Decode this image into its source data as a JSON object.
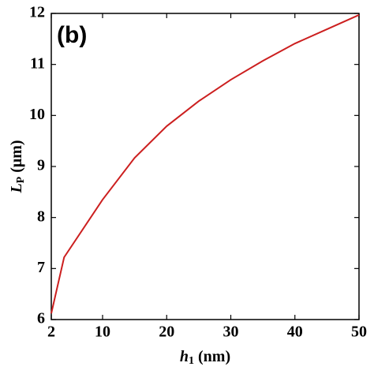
{
  "chart_data": {
    "type": "line",
    "annotation": "(b)",
    "xlabel": [
      "h",
      "1",
      " (nm)"
    ],
    "ylabel": [
      "L",
      "P",
      " (μm)"
    ],
    "x": [
      2,
      4,
      10,
      15,
      20,
      25,
      30,
      35,
      40,
      45,
      50
    ],
    "series": [
      {
        "color": "#cc1f1f",
        "values": [
          6.12,
          7.22,
          8.35,
          9.17,
          9.79,
          10.28,
          10.7,
          11.07,
          11.41,
          11.69,
          11.97
        ]
      }
    ],
    "xlim": [
      2,
      50
    ],
    "xticks": [
      2,
      10,
      20,
      30,
      40,
      50
    ],
    "ylim": [
      6,
      12
    ],
    "yticks": [
      6,
      7,
      8,
      9,
      10,
      11,
      12
    ]
  }
}
